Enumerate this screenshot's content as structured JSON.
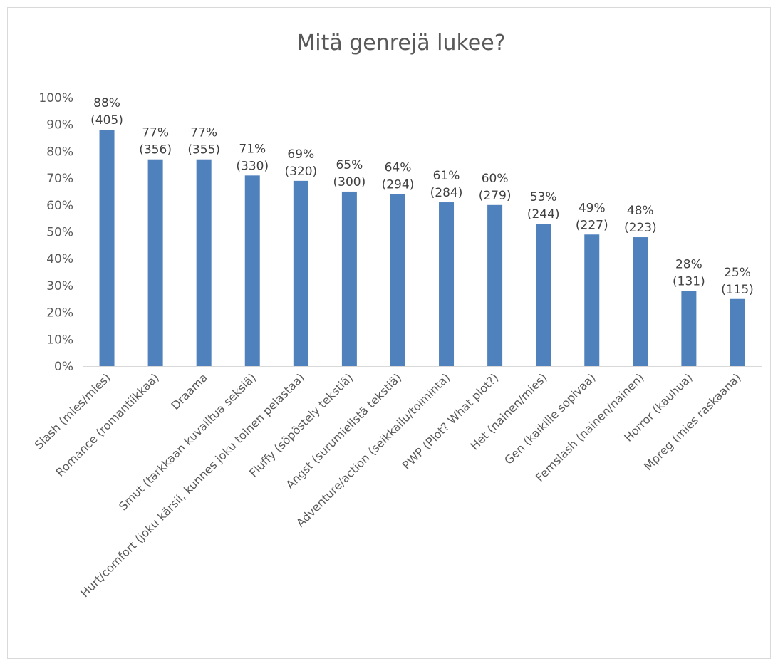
{
  "chart_data": {
    "type": "bar",
    "title": "Mitä genrejä lukee?",
    "xlabel": "",
    "ylabel": "",
    "ylim": [
      0,
      100
    ],
    "y_ticks": [
      "0%",
      "10%",
      "20%",
      "30%",
      "40%",
      "50%",
      "60%",
      "70%",
      "80%",
      "90%",
      "100%"
    ],
    "grid": false,
    "bar_color": "#4f81bd",
    "categories": [
      "Slash (mies/mies)",
      "Romance (romantiikkaa)",
      "Draama",
      "Smut (tarkkaan kuvailtua seksiä)",
      "Hurt/comfort (joku kärsii, kunnes joku toinen pelastaa)",
      "Fluffy (söpöstely tekstiä)",
      "Angst (surumielistä tekstiä)",
      "Adventure/action (seikkailu/toiminta)",
      "PWP (Plot? What plot?)",
      "Het (nainen/mies)",
      "Gen (kaikille sopivaa)",
      "Femslash (nainen/nainen)",
      "Horror (kauhua)",
      "Mpreg (mies raskaana)"
    ],
    "values": [
      88,
      77,
      77,
      71,
      69,
      65,
      64,
      61,
      60,
      53,
      49,
      48,
      28,
      25
    ],
    "percent_labels": [
      "88%",
      "77%",
      "77%",
      "71%",
      "69%",
      "65%",
      "64%",
      "61%",
      "60%",
      "53%",
      "49%",
      "48%",
      "28%",
      "25%"
    ],
    "counts": [
      "(405)",
      "(356)",
      "(355)",
      "(330)",
      "(320)",
      "(300)",
      "(294)",
      "(284)",
      "(279)",
      "(244)",
      "(227)",
      "(223)",
      "(131)",
      "(115)"
    ]
  }
}
